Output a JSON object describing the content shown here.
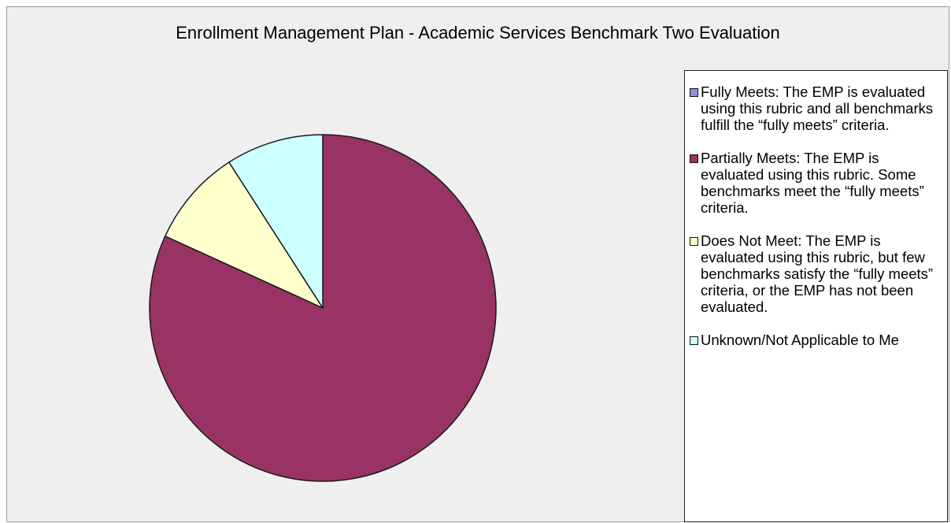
{
  "chart_data": {
    "type": "pie",
    "title": "Enrollment Management Plan - Academic Services Benchmark Two Evaluation",
    "slices": [
      {
        "label": "Fully Meets: The EMP is evaluated using this rubric and all benchmarks fulfill the “fully meets” criteria.",
        "value": 0,
        "color": "#8f8fe0"
      },
      {
        "label": "Partially Meets: The EMP is evaluated using this rubric. Some benchmarks meet the “fully meets” criteria.",
        "value": 81.8,
        "color": "#993366"
      },
      {
        "label": "Does Not Meet: The EMP is evaluated using this rubric, but few benchmarks satisfy the “fully meets” criteria, or the EMP has not been evaluated.",
        "value": 9.1,
        "color": "#ffffcc"
      },
      {
        "label": "Unknown/Not Applicable to Me",
        "value": 9.1,
        "color": "#ccffff"
      }
    ],
    "legend": "right"
  }
}
